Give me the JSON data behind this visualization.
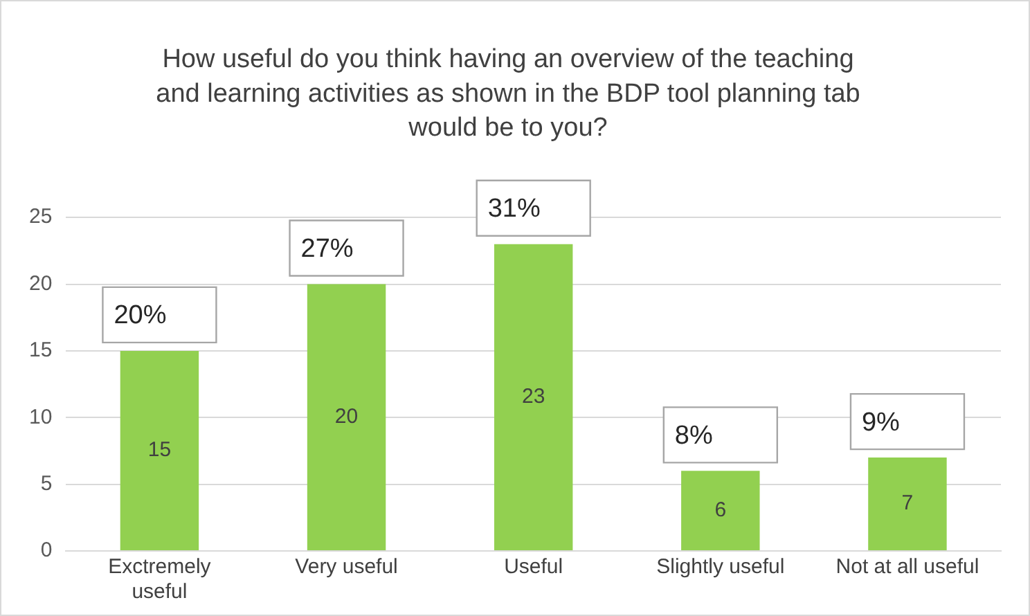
{
  "chart_data": {
    "type": "bar",
    "title": "How useful do you think having an overview of the teaching and learning activities as shown in the BDP tool planning tab would be to you?",
    "categories": [
      "Exctremely useful",
      "Very useful",
      "Useful",
      "Slightly useful",
      "Not at all useful"
    ],
    "values": [
      15,
      20,
      23,
      6,
      7
    ],
    "color": "#92d050",
    "value_labels": [
      "15",
      "20",
      "23",
      "6",
      "7"
    ],
    "annotations": [
      {
        "text": "20%",
        "x": "Exctremely useful",
        "y": 15
      },
      {
        "text": "27%",
        "x": "Very useful",
        "y": 20
      },
      {
        "text": "31%",
        "x": "Useful",
        "y": 23
      },
      {
        "text": "8%",
        "x": "Slightly useful",
        "y": 6
      },
      {
        "text": "9%",
        "x": "Not at all useful",
        "y": 7
      }
    ],
    "ylim": [
      0,
      25
    ],
    "yticks": [
      0,
      5,
      10,
      15,
      20,
      25
    ],
    "grid": "y",
    "legend": false
  }
}
